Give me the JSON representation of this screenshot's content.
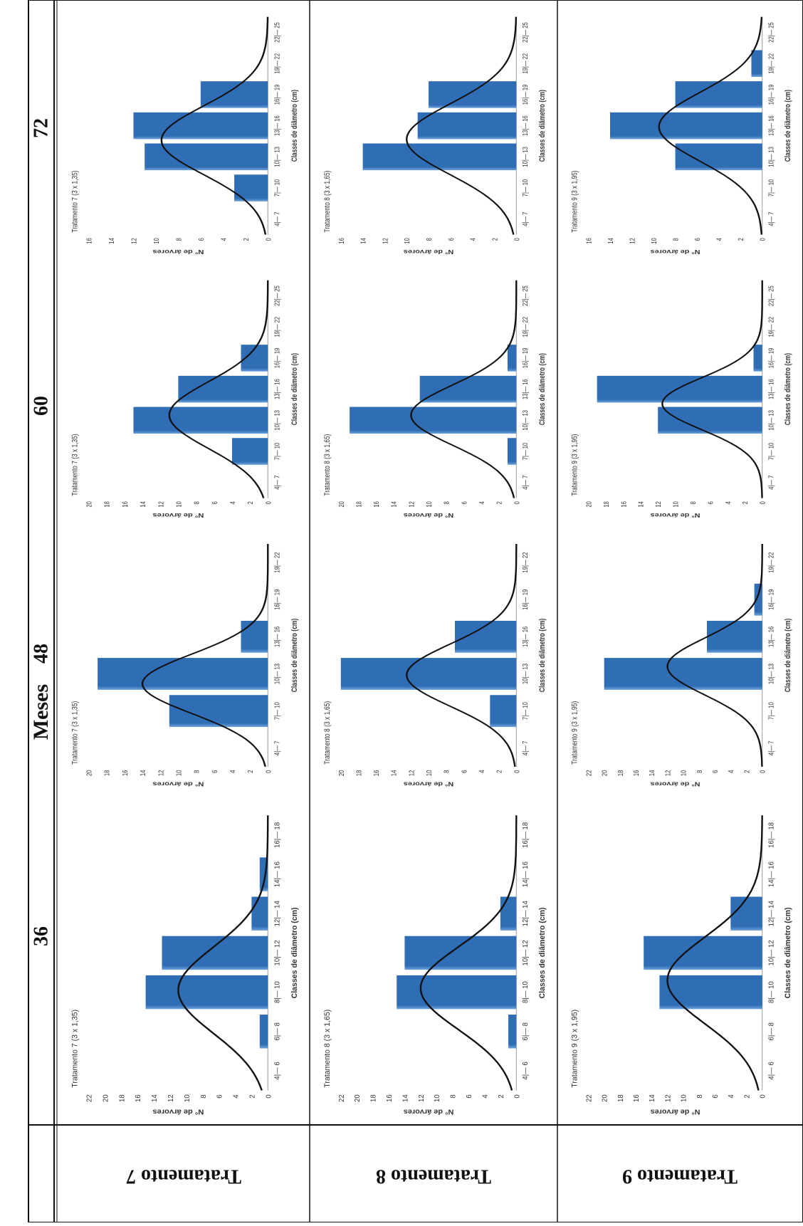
{
  "header": {
    "title": "Meses",
    "months": [
      "36",
      "48",
      "60",
      "72"
    ]
  },
  "rows": [
    {
      "label": "Tratamento 7"
    },
    {
      "label": "Tratamento 8"
    },
    {
      "label": "Tratamento 9"
    }
  ],
  "colors": {
    "bar": "#2f6db4",
    "bar_highlight": "#6ea3dd",
    "curve": "#111111",
    "axis": "#9a9a9a",
    "text": "#333333"
  },
  "axis_labels": {
    "y": "N° de árvores",
    "x": "Classes de diâmetro (cm)"
  },
  "chart_data": [
    {
      "type": "bar",
      "title": "Tratamento 7 (3 x 1,35)",
      "xlabel": "Classes de diâmetro (cm)",
      "ylabel": "N° de árvores",
      "categories": [
        "4|— 6",
        "6|— 8",
        "8|— 10",
        "10|— 12",
        "12|— 14",
        "14|— 16",
        "16|— 18"
      ],
      "values": [
        0,
        1,
        15,
        13,
        2,
        1,
        0
      ],
      "ylim": [
        0,
        22
      ],
      "yticks": [
        0,
        2,
        4,
        6,
        8,
        10,
        12,
        14,
        16,
        18,
        20,
        22
      ],
      "curve": {
        "mean": 9.1,
        "sd": 2.2,
        "peak": 11
      },
      "legend": "none",
      "grid": false
    },
    {
      "type": "bar",
      "title": "Tratamento 7 (3 x 1,35)",
      "xlabel": "Classes de diâmetro (cm)",
      "ylabel": "N° de árvores",
      "categories": [
        "4|— 7",
        "7|— 10",
        "10|— 13",
        "13|— 16",
        "16|— 19",
        "19|— 22"
      ],
      "values": [
        0,
        11,
        19,
        3,
        0,
        0
      ],
      "ylim": [
        0,
        20
      ],
      "yticks": [
        0,
        2,
        4,
        6,
        8,
        10,
        12,
        14,
        16,
        18,
        20
      ],
      "curve": {
        "mean": 10.7,
        "sd": 2.4,
        "peak": 14
      },
      "legend": "none",
      "grid": false
    },
    {
      "type": "bar",
      "title": "Tratamento 7 (3 x 1,35)",
      "xlabel": "Classes de diâmetro (cm)",
      "ylabel": "N° de árvores",
      "categories": [
        "4|— 7",
        "7|— 10",
        "10|— 13",
        "13|— 16",
        "16|— 19",
        "19|— 22",
        "22|— 25"
      ],
      "values": [
        0,
        4,
        15,
        10,
        3,
        0,
        0
      ],
      "ylim": [
        0,
        20
      ],
      "yticks": [
        0,
        2,
        4,
        6,
        8,
        10,
        12,
        14,
        16,
        18,
        20
      ],
      "curve": {
        "mean": 12.0,
        "sd": 3.2,
        "peak": 11
      },
      "legend": "none",
      "grid": false
    },
    {
      "type": "bar",
      "title": "Tratamento 7 (3 x 1,35)",
      "xlabel": "Classes de diâmetro (cm)",
      "ylabel": "N° de árvores",
      "categories": [
        "4|— 7",
        "7|— 10",
        "10|— 13",
        "13|— 16",
        "16|— 19",
        "19|— 22",
        "22|— 25"
      ],
      "values": [
        0,
        3,
        11,
        12,
        6,
        0,
        0
      ],
      "ylim": [
        0,
        16
      ],
      "yticks": [
        0,
        2,
        4,
        6,
        8,
        10,
        12,
        14,
        16
      ],
      "curve": {
        "mean": 13.1,
        "sd": 3.3,
        "peak": 9.5
      },
      "legend": "none",
      "grid": false
    },
    {
      "type": "bar",
      "title": "Tratamento 8 (3 x 1,65)",
      "xlabel": "Classes de diâmetro (cm)",
      "ylabel": "N° de árvores",
      "categories": [
        "4|— 6",
        "6|— 8",
        "8|— 10",
        "10|— 12",
        "12|— 14",
        "14|— 16",
        "16|— 18"
      ],
      "values": [
        0,
        1,
        15,
        14,
        2,
        0,
        0
      ],
      "ylim": [
        0,
        22
      ],
      "yticks": [
        0,
        2,
        4,
        6,
        8,
        10,
        12,
        14,
        16,
        18,
        20,
        22
      ],
      "curve": {
        "mean": 9.2,
        "sd": 2.1,
        "peak": 12
      },
      "legend": "none",
      "grid": false
    },
    {
      "type": "bar",
      "title": "Tratamento 8 (3 x 1,65)",
      "xlabel": "Classes de diâmetro (cm)",
      "ylabel": "N° de árvores",
      "categories": [
        "4|— 7",
        "7|— 10",
        "10|— 13",
        "13|— 16",
        "16|— 19",
        "19|— 22"
      ],
      "values": [
        0,
        3,
        20,
        7,
        0,
        0
      ],
      "ylim": [
        0,
        20
      ],
      "yticks": [
        0,
        2,
        4,
        6,
        8,
        10,
        12,
        14,
        16,
        18,
        20
      ],
      "curve": {
        "mean": 11.4,
        "sd": 2.5,
        "peak": 12.5
      },
      "legend": "none",
      "grid": false
    },
    {
      "type": "bar",
      "title": "Tratamento 8 (3 x 1,65)",
      "xlabel": "Classes de diâmetro (cm)",
      "ylabel": "N° de árvores",
      "categories": [
        "4|— 7",
        "7|— 10",
        "10|— 13",
        "13|— 16",
        "16|— 19",
        "19|— 22",
        "22|— 25"
      ],
      "values": [
        0,
        1,
        19,
        11,
        1,
        0,
        0
      ],
      "ylim": [
        0,
        20
      ],
      "yticks": [
        0,
        2,
        4,
        6,
        8,
        10,
        12,
        14,
        16,
        18,
        20
      ],
      "curve": {
        "mean": 12.0,
        "sd": 2.9,
        "peak": 12
      },
      "legend": "none",
      "grid": false
    },
    {
      "type": "bar",
      "title": "Tratamento 8 (3 x 1,65)",
      "xlabel": "Classes de diâmetro (cm)",
      "ylabel": "N° de árvores",
      "categories": [
        "4|— 7",
        "7|— 10",
        "10|— 13",
        "13|— 16",
        "16|— 19",
        "19|— 22",
        "22|— 25"
      ],
      "values": [
        0,
        0,
        14,
        9,
        8,
        0,
        0
      ],
      "ylim": [
        0,
        16
      ],
      "yticks": [
        0,
        2,
        4,
        6,
        8,
        10,
        12,
        14,
        16
      ],
      "curve": {
        "mean": 13.2,
        "sd": 3.4,
        "peak": 10
      },
      "legend": "none",
      "grid": false
    },
    {
      "type": "bar",
      "title": "Tratamento 9 (3 x 1,95)",
      "xlabel": "Classes de diâmetro (cm)",
      "ylabel": "N° de árvores",
      "categories": [
        "4|— 6",
        "6|— 8",
        "8|— 10",
        "10|— 12",
        "12|— 14",
        "14|— 16",
        "16|— 18"
      ],
      "values": [
        0,
        0,
        13,
        15,
        4,
        0,
        0
      ],
      "ylim": [
        0,
        22
      ],
      "yticks": [
        0,
        2,
        4,
        6,
        8,
        10,
        12,
        14,
        16,
        18,
        20,
        22
      ],
      "curve": {
        "mean": 9.6,
        "sd": 2.2,
        "peak": 12
      },
      "legend": "none",
      "grid": false
    },
    {
      "type": "bar",
      "title": "Tratamento 9 (3 x 1,95)",
      "xlabel": "Classes de diâmetro (cm)",
      "ylabel": "N° de árvores",
      "categories": [
        "4|— 7",
        "7|— 10",
        "10|— 13",
        "13|— 16",
        "16|— 19",
        "19|— 22"
      ],
      "values": [
        0,
        0,
        20,
        7,
        1,
        0
      ],
      "ylim": [
        0,
        22
      ],
      "yticks": [
        0,
        2,
        4,
        6,
        8,
        10,
        12,
        14,
        16,
        18,
        20,
        22
      ],
      "curve": {
        "mean": 12.1,
        "sd": 2.3,
        "peak": 12
      },
      "legend": "none",
      "grid": false
    },
    {
      "type": "bar",
      "title": "Tratamento 9 (3 x 1,95)",
      "xlabel": "Classes de diâmetro (cm)",
      "ylabel": "N° de árvores",
      "categories": [
        "4|— 7",
        "7|— 10",
        "10|— 13",
        "13|— 16",
        "16|— 19",
        "19|— 22",
        "22|— 25"
      ],
      "values": [
        0,
        0,
        12,
        19,
        1,
        0,
        0
      ],
      "ylim": [
        0,
        20
      ],
      "yticks": [
        0,
        2,
        4,
        6,
        8,
        10,
        12,
        14,
        16,
        18,
        20
      ],
      "curve": {
        "mean": 13.1,
        "sd": 2.5,
        "peak": 11.5
      },
      "legend": "none",
      "grid": false
    },
    {
      "type": "bar",
      "title": "Tratamento 9 (3 x 1,95)",
      "xlabel": "Classes de diâmetro (cm)",
      "ylabel": "N° de árvores",
      "categories": [
        "4|— 7",
        "7|— 10",
        "10|— 13",
        "13|— 16",
        "16|— 19",
        "19|— 22",
        "22|— 25"
      ],
      "values": [
        0,
        0,
        8,
        14,
        8,
        1,
        0
      ],
      "ylim": [
        0,
        16
      ],
      "yticks": [
        0,
        2,
        4,
        6,
        8,
        10,
        12,
        14,
        16
      ],
      "curve": {
        "mean": 14.4,
        "sd": 3.3,
        "peak": 9.5
      },
      "legend": "none",
      "grid": false
    }
  ]
}
